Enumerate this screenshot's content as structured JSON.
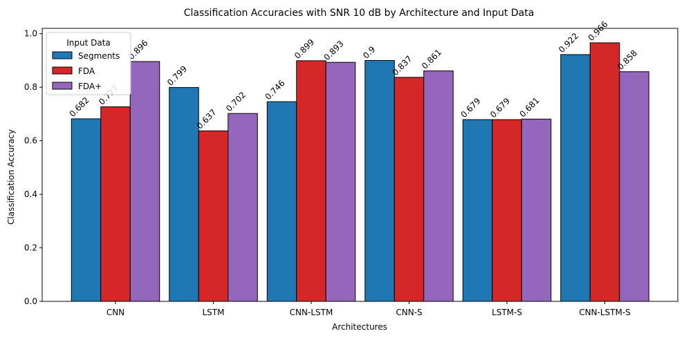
{
  "chart_data": {
    "type": "bar",
    "title": "Classification Accuracies with SNR 10 dB by Architecture and Input Data",
    "xlabel": "Architectures",
    "ylabel": "Classification Accuracy",
    "ylim": [
      0,
      1.02
    ],
    "yticks": [
      "0.0",
      "0.2",
      "0.4",
      "0.6",
      "0.8",
      "1.0"
    ],
    "grid": false,
    "categories": [
      "CNN",
      "LSTM",
      "CNN-LSTM",
      "CNN-S",
      "LSTM-S",
      "CNN-LSTM-S"
    ],
    "legend": {
      "title": "Input Data",
      "position": "top-left"
    },
    "series": [
      {
        "name": "Segments",
        "color": "#1f77b4",
        "values": [
          0.682,
          0.799,
          0.746,
          0.9,
          0.679,
          0.922
        ],
        "labels": [
          "0.682",
          "0.799",
          "0.746",
          "0.9",
          "0.679",
          "0.922"
        ]
      },
      {
        "name": "FDA",
        "color": "#d62728",
        "values": [
          0.727,
          0.637,
          0.899,
          0.837,
          0.679,
          0.966
        ],
        "labels": [
          "0.727",
          "0.637",
          "0.899",
          "0.837",
          "0.679",
          "0.966"
        ]
      },
      {
        "name": "FDA+",
        "color": "#9467bd",
        "values": [
          0.896,
          0.702,
          0.893,
          0.861,
          0.681,
          0.858
        ],
        "labels": [
          "0.896",
          "0.702",
          "0.893",
          "0.861",
          "0.681",
          "0.858"
        ]
      }
    ]
  }
}
